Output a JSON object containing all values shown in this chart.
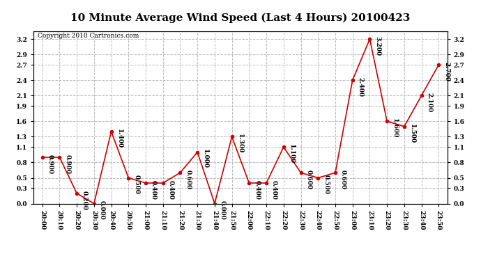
{
  "title": "10 Minute Average Wind Speed (Last 4 Hours) 20100423",
  "copyright": "Copyright 2010 Cartronics.com",
  "x_labels": [
    "20:00",
    "20:10",
    "20:20",
    "20:30",
    "20:40",
    "20:50",
    "21:00",
    "21:10",
    "21:20",
    "21:30",
    "21:40",
    "21:50",
    "22:00",
    "22:10",
    "22:20",
    "22:30",
    "22:40",
    "22:50",
    "23:00",
    "23:10",
    "23:20",
    "23:30",
    "23:40",
    "23:50"
  ],
  "y_values": [
    0.9,
    0.9,
    0.2,
    0.0,
    1.4,
    0.5,
    0.4,
    0.4,
    0.6,
    1.0,
    0.0,
    1.3,
    0.4,
    0.4,
    1.1,
    0.6,
    0.5,
    0.6,
    2.4,
    3.2,
    1.6,
    1.5,
    2.1,
    2.7
  ],
  "line_color": "#cc0000",
  "marker_color": "#cc0000",
  "bg_color": "#ffffff",
  "grid_color": "#bbbbbb",
  "ylim": [
    0.0,
    3.35
  ],
  "yticks": [
    0.0,
    0.3,
    0.5,
    0.8,
    1.1,
    1.3,
    1.6,
    1.9,
    2.1,
    2.4,
    2.7,
    2.9,
    3.2
  ],
  "title_fontsize": 11,
  "label_fontsize": 6.5,
  "annotation_fontsize": 6.5,
  "copyright_fontsize": 6.5
}
